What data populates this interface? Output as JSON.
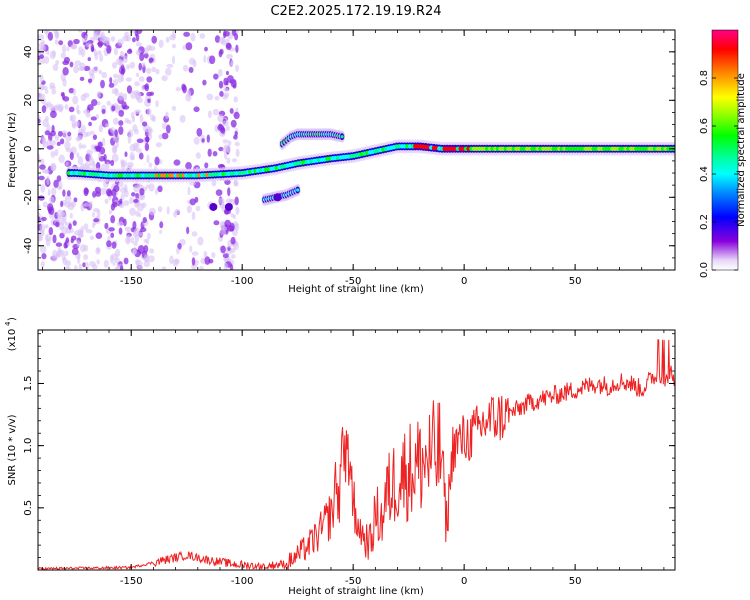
{
  "title": "C2E2.2025.172.19.19.R24",
  "chart_data": [
    {
      "type": "heatmap",
      "name": "spectrogram",
      "xlabel": "Height of straight line (km)",
      "ylabel": "Frequency (Hz)",
      "xlim": [
        -192,
        95
      ],
      "ylim": [
        -50,
        49
      ],
      "xticks": [
        "-150",
        "-100",
        "-50",
        "0",
        "50"
      ],
      "yticks": [
        "-40",
        "-20",
        "0",
        "20",
        "40"
      ],
      "colorbar": {
        "label": "Normalized spectral amplitude",
        "range": [
          0,
          1
        ],
        "ticks": [
          "0.0",
          "0.2",
          "0.4",
          "0.6",
          "0.8"
        ],
        "colors": [
          "#ffffff",
          "#e8d8f8",
          "#8800dd",
          "#0000ff",
          "#0088ff",
          "#00ffff",
          "#00ff88",
          "#00ff00",
          "#88ff00",
          "#ffff00",
          "#ff8800",
          "#ff0000",
          "#ff0088"
        ]
      },
      "dominant_track": {
        "x": [
          -175,
          -160,
          -140,
          -120,
          -100,
          -85,
          -75,
          -60,
          -50,
          -40,
          -30,
          -20,
          -10,
          0,
          20,
          50,
          95
        ],
        "y": [
          -10,
          -11,
          -11,
          -11,
          -10,
          -8,
          -6,
          -4,
          -3,
          -1,
          1,
          1,
          0,
          0,
          0,
          0,
          0
        ]
      },
      "secondary_features": [
        {
          "x": [
            -82,
            -78,
            -75,
            -70,
            -65,
            -60,
            -55
          ],
          "y": [
            2,
            5,
            6,
            6,
            6,
            6,
            5
          ]
        },
        {
          "x": [
            -90,
            -85,
            -80,
            -75
          ],
          "y": [
            -21,
            -20,
            -19,
            -17
          ]
        }
      ],
      "grid": false
    },
    {
      "type": "line",
      "name": "snr",
      "xlabel": "Height of straight line (km)",
      "ylabel": "SNR (10 * v/v)",
      "scale_label": "(x10",
      "scale_exp": "4",
      "xlim": [
        -192,
        95
      ],
      "ylim": [
        0,
        1.93
      ],
      "xticks": [
        "-150",
        "-100",
        "-50",
        "0",
        "50"
      ],
      "yticks": [
        "0.5",
        "1.0",
        "1.5"
      ],
      "color": "#ee2222",
      "series": [
        {
          "x": [
            -192,
            -150,
            -135,
            -125,
            -115,
            -105,
            -100,
            -90,
            -80,
            -75,
            -70,
            -65,
            -60,
            -55,
            -53,
            -50,
            -47,
            -45,
            -42,
            -40,
            -37,
            -35,
            -30,
            -25,
            -20,
            -15,
            -10,
            -8,
            -5,
            0,
            5,
            10,
            20,
            30,
            40,
            50,
            60,
            65,
            70,
            75,
            80,
            85,
            88,
            90,
            93,
            95
          ],
          "y": [
            0.01,
            0.02,
            0.08,
            0.12,
            0.08,
            0.05,
            0.04,
            0.03,
            0.05,
            0.12,
            0.2,
            0.3,
            0.45,
            0.7,
            1.15,
            0.55,
            0.35,
            0.25,
            0.22,
            0.45,
            0.4,
            0.6,
            0.75,
            0.8,
            0.85,
            0.9,
            0.95,
            0.35,
            1.0,
            1.05,
            1.1,
            1.2,
            1.25,
            1.35,
            1.4,
            1.45,
            1.5,
            1.48,
            1.52,
            1.5,
            1.45,
            1.55,
            1.6,
            1.48,
            1.6,
            1.55
          ]
        }
      ],
      "grid": false
    }
  ]
}
